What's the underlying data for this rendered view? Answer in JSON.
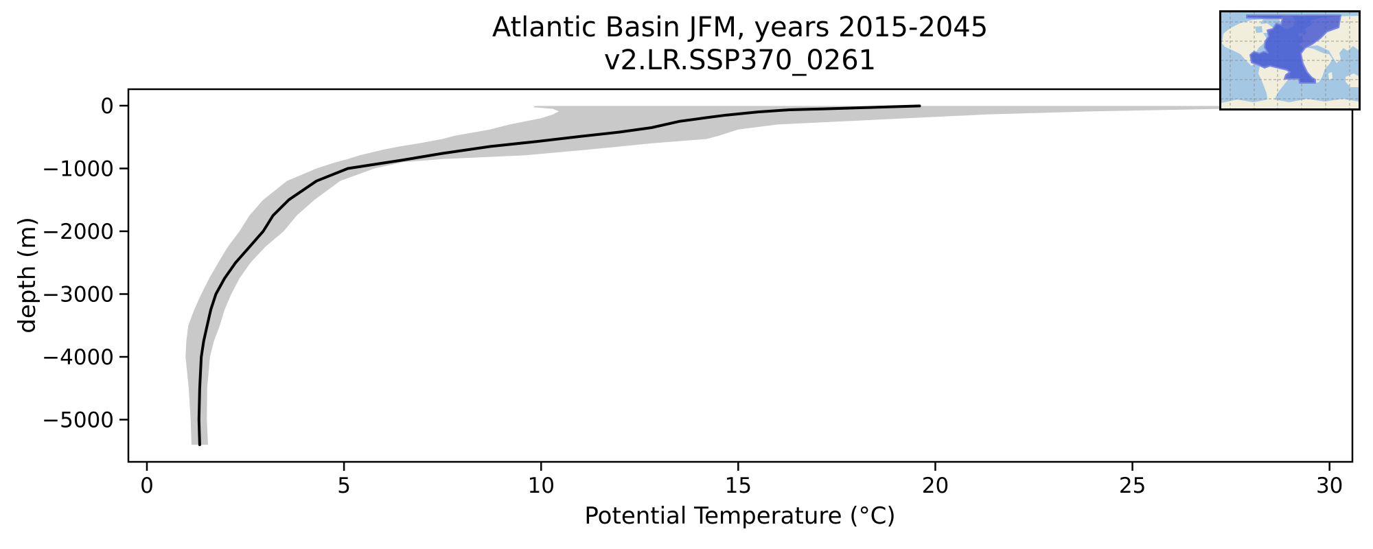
{
  "figure": {
    "background": "#ffffff"
  },
  "title": {
    "line1": "Atlantic Basin JFM, years 2015-2045",
    "line2": "v2.LR.SSP370_0261"
  },
  "axes": {
    "xlabel": "Potential Temperature (°C)",
    "ylabel": "depth (m)",
    "x_ticks": [
      0,
      5,
      10,
      15,
      20,
      25,
      30
    ],
    "y_ticks": [
      0,
      -1000,
      -2000,
      -3000,
      -4000,
      -5000
    ],
    "xlim": [
      -0.47,
      30.58
    ],
    "ylim": [
      -5672,
      262
    ]
  },
  "chart_data": {
    "type": "line",
    "title": "Atlantic Basin JFM, years 2015-2045\nv2.LR.SSP370_0261",
    "xlabel": "Potential Temperature (°C)",
    "ylabel": "depth (m)",
    "xlim": [
      -0.47,
      30.58
    ],
    "ylim": [
      -5672,
      262
    ],
    "grid": false,
    "legend": null,
    "series": [
      {
        "name": "mean potential temperature profile",
        "type": "line",
        "color": "#000000",
        "line_width": 4,
        "depth_m": [
          -5,
          -20,
          -33,
          -50,
          -66,
          -100,
          -150,
          -190,
          -250,
          -350,
          -420,
          -490,
          -570,
          -650,
          -760,
          -865,
          -1000,
          -1200,
          -1500,
          -1750,
          -2000,
          -2250,
          -2500,
          -2750,
          -3000,
          -3250,
          -3500,
          -3750,
          -4000,
          -4500,
          -5000,
          -5400
        ],
        "temperature_c": [
          19.6,
          18.8,
          18.1,
          17.2,
          16.3,
          15.5,
          14.7,
          14.2,
          13.5,
          12.8,
          12.0,
          11.0,
          9.9,
          8.7,
          7.5,
          6.5,
          5.1,
          4.3,
          3.6,
          3.2,
          2.95,
          2.6,
          2.25,
          1.97,
          1.75,
          1.62,
          1.53,
          1.44,
          1.38,
          1.34,
          1.32,
          1.34
        ]
      },
      {
        "name": "min-max envelope",
        "type": "band",
        "color": "#c9c9c9",
        "depth_m": [
          -5,
          -25,
          -50,
          -90,
          -140,
          -200,
          -300,
          -380,
          -480,
          -530,
          -600,
          -650,
          -700,
          -790,
          -850,
          -900,
          -1000,
          -1200,
          -1500,
          -1750,
          -2000,
          -2250,
          -2500,
          -2750,
          -3000,
          -3250,
          -3500,
          -3750,
          -4000,
          -4500,
          -5000,
          -5400
        ],
        "t_min_c": [
          9.85,
          9.8,
          10.3,
          10.45,
          10.3,
          10.0,
          9.2,
          8.7,
          7.8,
          7.5,
          6.9,
          6.4,
          6.0,
          5.4,
          5.1,
          4.8,
          4.3,
          3.55,
          2.95,
          2.6,
          2.35,
          2.05,
          1.81,
          1.58,
          1.38,
          1.2,
          1.05,
          1.0,
          0.98,
          1.06,
          1.11,
          1.13
        ],
        "t_max_c": [
          27.4,
          27.35,
          27.3,
          24.0,
          21.3,
          19.3,
          16.0,
          15.0,
          14.5,
          14.2,
          12.8,
          12.0,
          11.2,
          9.6,
          7.5,
          6.5,
          5.77,
          4.9,
          4.25,
          3.8,
          3.47,
          3.0,
          2.63,
          2.35,
          2.14,
          1.97,
          1.85,
          1.7,
          1.6,
          1.53,
          1.52,
          1.55
        ]
      }
    ]
  },
  "inset_map": {
    "description": "World map with Atlantic basin region highlighted",
    "ocean_color": "#a4c8e4",
    "land_color": "#f1eedc",
    "region_color": "#3f51d0",
    "region_edge_color": "#7b87e6",
    "grid_color": "#8c8c8c",
    "border_color": "#000000"
  }
}
